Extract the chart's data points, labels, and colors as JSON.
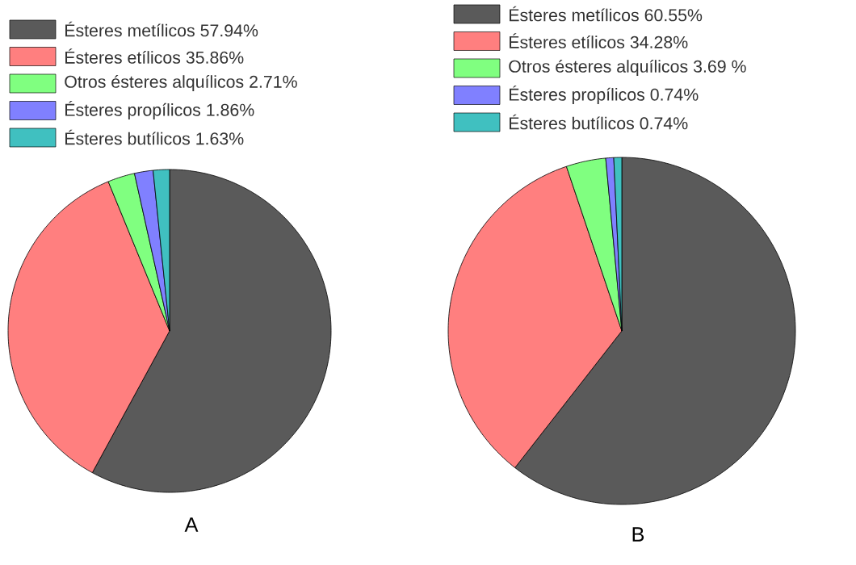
{
  "chart_data": [
    {
      "type": "pie",
      "title": "A",
      "legend": "top",
      "categories": [
        "Ésteres metílicos",
        "Ésteres etílicos",
        "Otros ésteres alquílicos",
        "Ésteres propílicos",
        "Ésteres butílicos"
      ],
      "values": [
        57.94,
        35.86,
        2.71,
        1.86,
        1.63
      ],
      "value_labels": [
        "57.94%",
        "35.86%",
        "2.71%",
        "1.86%",
        "1.63%"
      ],
      "colors": [
        "#5a5a5a",
        "#ff7f7f",
        "#80ff80",
        "#8080ff",
        "#40c0c0"
      ]
    },
    {
      "type": "pie",
      "title": "B",
      "legend": "top",
      "categories": [
        "Ésteres metílicos",
        "Ésteres etílicos",
        "Otros ésteres alquílicos",
        "Ésteres propílicos",
        "Ésteres butílicos"
      ],
      "values": [
        60.55,
        34.28,
        3.69,
        0.74,
        0.74
      ],
      "value_labels": [
        "60.55%",
        "34.28%",
        "3.69 %",
        "0.74%",
        "0.74%"
      ],
      "colors": [
        "#5a5a5a",
        "#ff7f7f",
        "#80ff80",
        "#8080ff",
        "#40c0c0"
      ]
    }
  ]
}
